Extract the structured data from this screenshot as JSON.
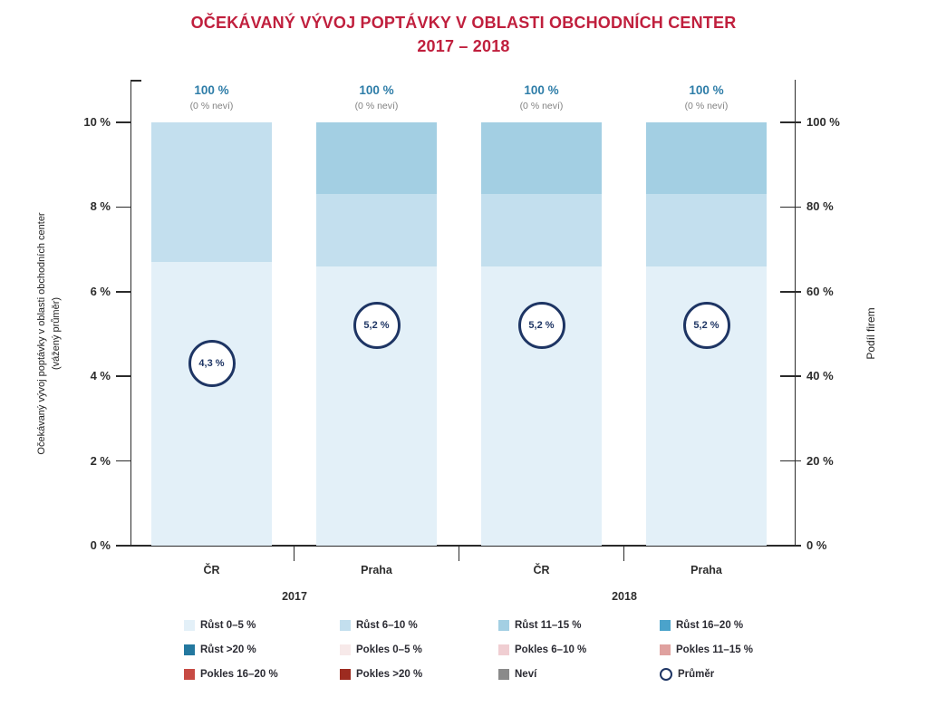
{
  "title": {
    "line1": "OČEKÁVANÝ VÝVOJ POPTÁVKY V OBLASTI OBCHODNÍCH CENTER",
    "line2": "2017 – 2018"
  },
  "colors": {
    "title": "#c01f3d",
    "total_label": "#2e7da8",
    "note": "#828282",
    "average": "#1e3564",
    "axis": "#2b2b2b"
  },
  "chart_data": {
    "type": "bar",
    "stacked": true,
    "categories": [
      "ČR",
      "Praha",
      "ČR",
      "Praha"
    ],
    "group_labels": [
      "2017",
      "2018"
    ],
    "left_axis": {
      "label": "Očekávaný vývoj poptávky v oblasti obchodních center",
      "label2": "(vážený průměr)",
      "ticks": [
        "10 %",
        "8 %",
        "6 %",
        "4 %",
        "2 %",
        "0 %"
      ],
      "tick_values": [
        10,
        8,
        6,
        4,
        2,
        0
      ],
      "range": [
        0,
        10
      ]
    },
    "right_axis": {
      "label": "Podíl firem",
      "ticks": [
        "100 %",
        "80 %",
        "60 %",
        "40 %",
        "20 %",
        "0 %"
      ],
      "tick_values": [
        100,
        80,
        60,
        40,
        20,
        0
      ],
      "range": [
        0,
        100
      ]
    },
    "bars": [
      {
        "category": "ČR",
        "group": "2017",
        "total": "100 %",
        "note": "(0 % neví)",
        "average": 4.3,
        "average_label": "4,3 %",
        "segments": [
          {
            "name": "Růst 0–5 %",
            "value": 67
          },
          {
            "name": "Růst 6–10 %",
            "value": 33
          }
        ]
      },
      {
        "category": "Praha",
        "group": "2017",
        "total": "100 %",
        "note": "(0 % neví)",
        "average": 5.2,
        "average_label": "5,2 %",
        "segments": [
          {
            "name": "Růst 0–5 %",
            "value": 66
          },
          {
            "name": "Růst 6–10 %",
            "value": 17
          },
          {
            "name": "Růst 11–15 %",
            "value": 17
          }
        ]
      },
      {
        "category": "ČR",
        "group": "2018",
        "total": "100 %",
        "note": "(0 % neví)",
        "average": 5.2,
        "average_label": "5,2 %",
        "segments": [
          {
            "name": "Růst 0–5 %",
            "value": 66
          },
          {
            "name": "Růst 6–10 %",
            "value": 17
          },
          {
            "name": "Růst 11–15 %",
            "value": 17
          }
        ]
      },
      {
        "category": "Praha",
        "group": "2018",
        "total": "100 %",
        "note": "(0 % neví)",
        "average": 5.2,
        "average_label": "5,2 %",
        "segments": [
          {
            "name": "Růst 0–5 %",
            "value": 66
          },
          {
            "name": "Růst 6–10 %",
            "value": 17
          },
          {
            "name": "Růst 11–15 %",
            "value": 17
          }
        ]
      }
    ],
    "legend": [
      {
        "label": "Růst 0–5 %",
        "color": "#e3f0f8"
      },
      {
        "label": "Růst 6–10 %",
        "color": "#c3dfee"
      },
      {
        "label": "Růst 11–15 %",
        "color": "#a3cfe3"
      },
      {
        "label": "Růst 16–20 %",
        "color": "#4ba3cb"
      },
      {
        "label": "Růst >20 %",
        "color": "#23789f"
      },
      {
        "label": "Pokles 0–5 %",
        "color": "#f7e9e9"
      },
      {
        "label": "Pokles 6–10 %",
        "color": "#f0ced2"
      },
      {
        "label": "Pokles 11–15 %",
        "color": "#dfa19f"
      },
      {
        "label": "Pokles 16–20 %",
        "color": "#c74b44"
      },
      {
        "label": "Pokles >20 %",
        "color": "#9d2b20"
      },
      {
        "label": "Neví",
        "color": "#8a8a8a"
      },
      {
        "label": "Průměr",
        "color": "#1e3564",
        "type": "circle"
      }
    ]
  }
}
